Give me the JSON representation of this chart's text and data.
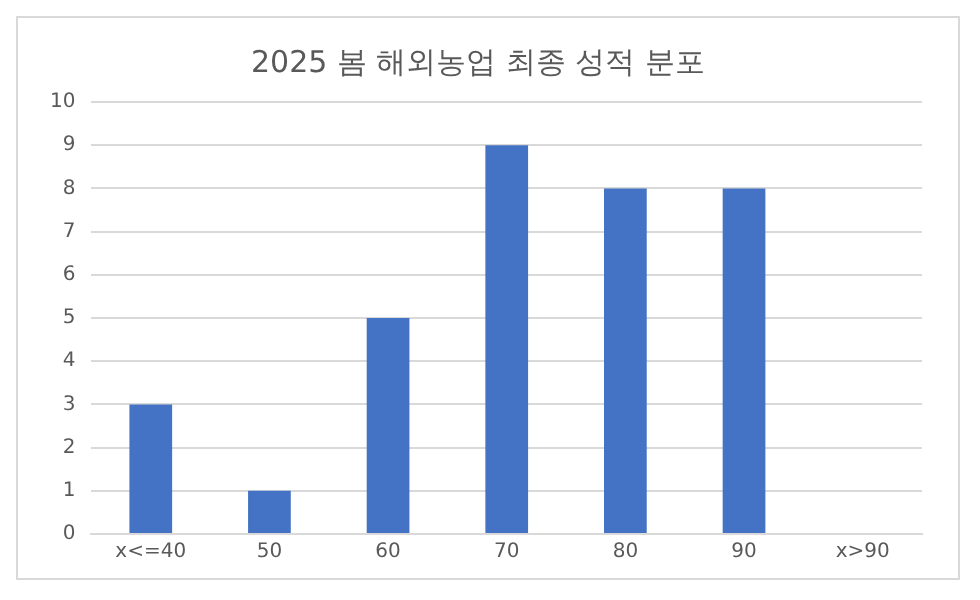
{
  "chart_data": {
    "type": "bar",
    "title": "2025 봄 해외농업 최종 성적 분포",
    "categories": [
      "x<=40",
      "50",
      "60",
      "70",
      "80",
      "90",
      "x>90"
    ],
    "values": [
      3,
      1,
      5,
      9,
      8,
      8,
      0
    ],
    "color": "#4472c4",
    "ylim": [
      0,
      10
    ],
    "yticks": [
      0,
      1,
      2,
      3,
      4,
      5,
      6,
      7,
      8,
      9,
      10
    ],
    "grid": "y",
    "legend": false
  }
}
